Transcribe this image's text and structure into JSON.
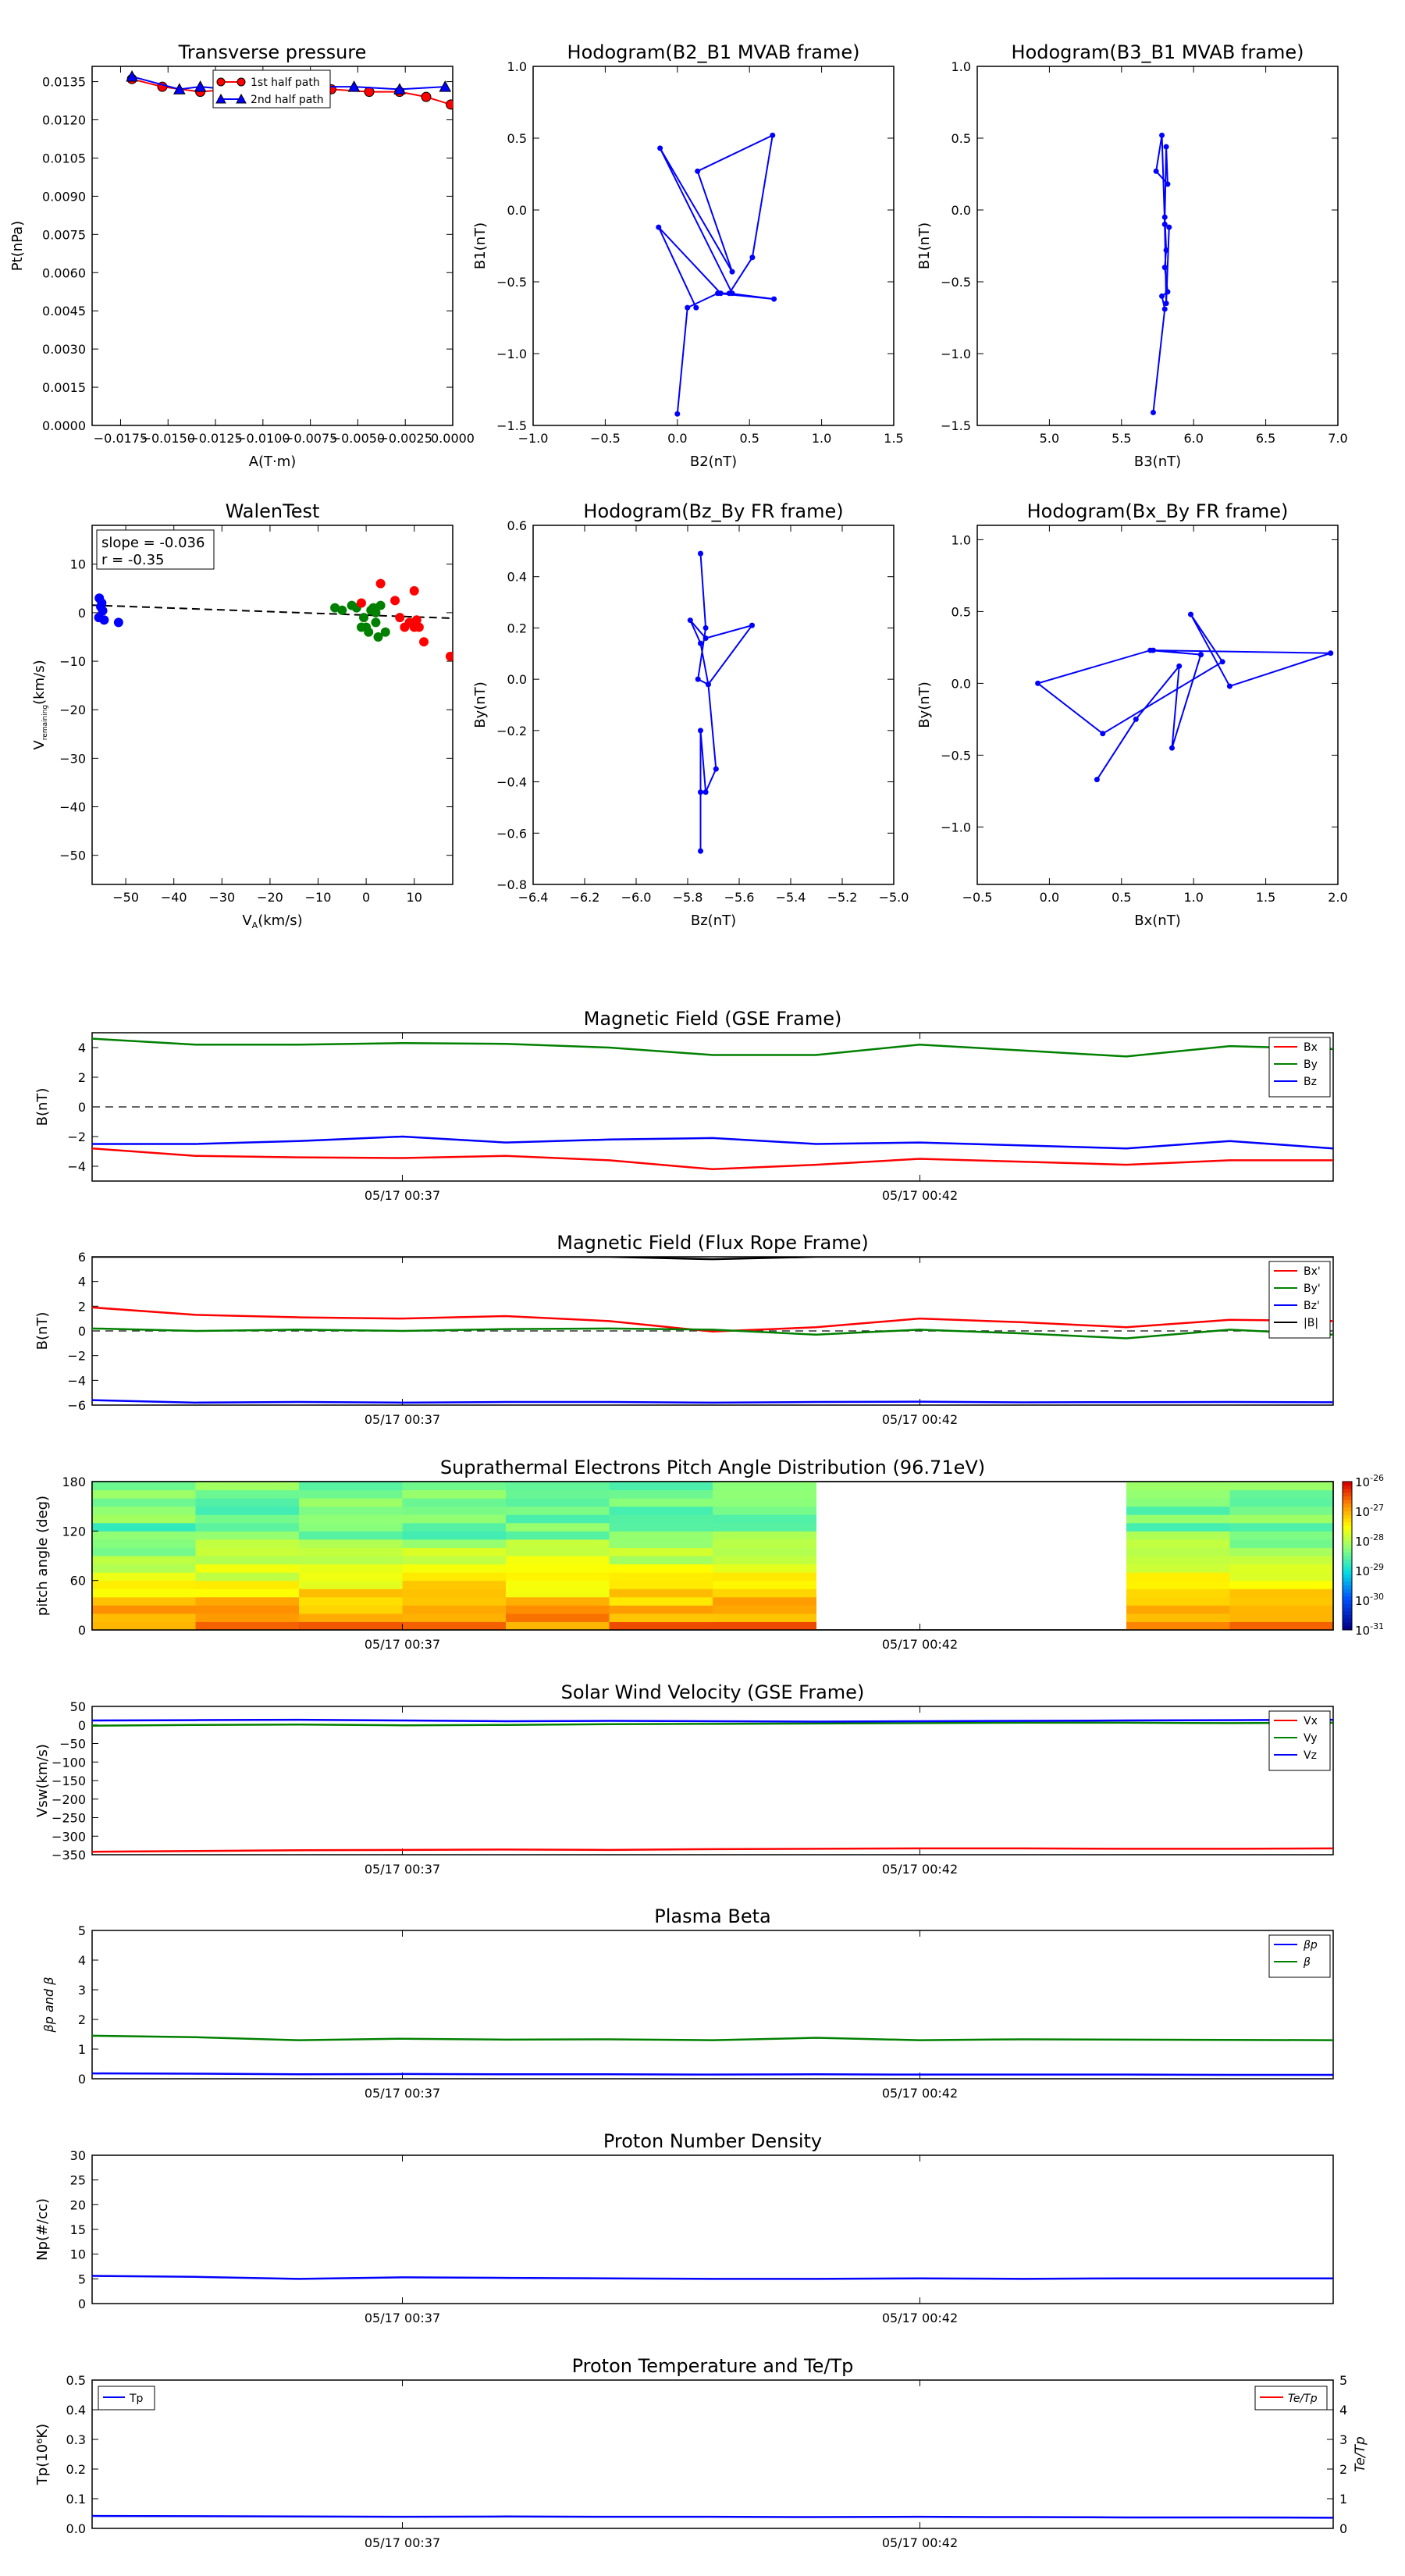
{
  "chart_data": [
    {
      "id": "pt",
      "type": "line",
      "title": "Transverse pressure",
      "xlabel": "A(T·m)",
      "ylabel": "Pt(nPa)",
      "xlim": [
        -0.019,
        0.0
      ],
      "ylim": [
        0.0,
        0.0141
      ],
      "xticks": [
        -0.0175,
        -0.015,
        -0.0125,
        -0.01,
        -0.0075,
        -0.005,
        -0.0025,
        0.0
      ],
      "xtick_labels": [
        "−0.0175",
        "−0.0150",
        "−0.0125",
        "−0.0100",
        "−0.0075",
        "−0.0050",
        "−0.0025",
        "0.0000"
      ],
      "yticks": [
        0.0,
        0.0015,
        0.003,
        0.0045,
        0.006,
        0.0075,
        0.009,
        0.0105,
        0.012,
        0.0135
      ],
      "ytick_labels": [
        "0.0000",
        "0.0015",
        "0.0030",
        "0.0045",
        "0.0060",
        "0.0075",
        "0.0090",
        "0.0105",
        "0.0120",
        "0.0135"
      ],
      "legend": "top-center",
      "series": [
        {
          "name": "1st half path",
          "color": "#ff0000",
          "marker": "circle",
          "x": [
            -0.0169,
            -0.0153,
            -0.0133,
            -0.0118,
            -0.0108,
            -0.0085,
            -0.0064,
            -0.0044,
            -0.0028,
            -0.0014,
            -0.0001
          ],
          "y": [
            0.0136,
            0.0133,
            0.0131,
            0.0132,
            0.0132,
            0.0131,
            0.0132,
            0.0131,
            0.0131,
            0.0129,
            0.0126
          ]
        },
        {
          "name": "2nd half path",
          "color": "#0000ff",
          "marker": "triangle",
          "x": [
            -0.0169,
            -0.0144,
            -0.0133,
            -0.0118,
            -0.0098,
            -0.0078,
            -0.0052,
            -0.0028,
            -0.0004
          ],
          "y": [
            0.0137,
            0.0132,
            0.0133,
            0.0132,
            0.0133,
            0.0133,
            0.0133,
            0.0132,
            0.0133
          ]
        }
      ]
    },
    {
      "id": "h1",
      "type": "line",
      "title": "Hodogram(B2_B1 MVAB frame)",
      "xlabel": "B2(nT)",
      "ylabel": "B1(nT)",
      "xlim": [
        -1.0,
        1.5
      ],
      "ylim": [
        -1.5,
        1.0
      ],
      "xticks": [
        -1.0,
        -0.5,
        0.0,
        0.5,
        1.0,
        1.5
      ],
      "xtick_labels": [
        "−1.0",
        "−0.5",
        "0.0",
        "0.5",
        "1.0",
        "1.5"
      ],
      "yticks": [
        -1.5,
        -1.0,
        -0.5,
        0.0,
        0.5,
        1.0
      ],
      "ytick_labels": [
        "−1.5",
        "−1.0",
        "−0.5",
        "0.0",
        "0.5",
        "1.0"
      ],
      "series": [
        {
          "color": "#0000ff",
          "marker": "dot",
          "x": [
            0.0,
            0.07,
            0.28,
            0.67,
            0.36,
            0.52,
            0.66,
            0.14,
            0.38,
            -0.12,
            0.38,
            0.3,
            -0.13,
            0.13
          ],
          "y": [
            -1.42,
            -0.68,
            -0.58,
            -0.62,
            -0.58,
            -0.33,
            0.52,
            0.27,
            -0.43,
            0.43,
            -0.58,
            -0.58,
            -0.12,
            -0.68
          ]
        }
      ]
    },
    {
      "id": "h2",
      "type": "line",
      "title": "Hodogram(B3_B1 MVAB frame)",
      "xlabel": "B3(nT)",
      "ylabel": "B1(nT)",
      "xlim": [
        4.5,
        7.0
      ],
      "ylim": [
        -1.5,
        1.0
      ],
      "xticks": [
        5.0,
        5.5,
        6.0,
        6.5,
        7.0
      ],
      "xtick_labels": [
        "5.0",
        "5.5",
        "6.0",
        "6.5",
        "7.0"
      ],
      "yticks": [
        -1.5,
        -1.0,
        -0.5,
        0.0,
        0.5,
        1.0
      ],
      "ytick_labels": [
        "−1.5",
        "−1.0",
        "−0.5",
        "0.0",
        "0.5",
        "1.0"
      ],
      "series": [
        {
          "color": "#0000ff",
          "marker": "dot",
          "x": [
            5.72,
            5.8,
            5.78,
            5.82,
            5.8,
            5.81,
            5.8,
            5.81,
            5.82,
            5.74,
            5.78,
            5.8,
            5.81,
            5.83
          ],
          "y": [
            -1.41,
            -0.69,
            -0.6,
            -0.57,
            -0.4,
            -0.28,
            -0.05,
            0.44,
            0.18,
            0.27,
            0.52,
            -0.1,
            -0.65,
            -0.12
          ]
        }
      ]
    },
    {
      "id": "wt",
      "type": "scatter",
      "title": "WalenTest",
      "xlabel": "V",
      "xlabel_sub": "A",
      "xlabel_tail": "(km/s)",
      "ylabel": "V",
      "ylabel_sub": "remaining",
      "ylabel_tail": "(km/s)",
      "xlim": [
        -57,
        18
      ],
      "ylim": [
        -56,
        18
      ],
      "xticks": [
        -50,
        -40,
        -30,
        -20,
        -10,
        0,
        10
      ],
      "xtick_labels": [
        "−50",
        "−40",
        "−30",
        "−20",
        "−10",
        "0",
        "10"
      ],
      "yticks": [
        -50,
        -40,
        -30,
        -20,
        -10,
        0,
        10
      ],
      "ytick_labels": [
        "−50",
        "−40",
        "−30",
        "−20",
        "−10",
        "0",
        "10"
      ],
      "annotation": [
        "slope = -0.036",
        "r = -0.35"
      ],
      "fit": {
        "slope": -0.036,
        "intercept": -0.5
      },
      "series": [
        {
          "color": "#0000ff",
          "x": [
            -55.5,
            -55,
            -55.2,
            -54.8,
            -55.6,
            -54.5,
            -51.5
          ],
          "y": [
            3,
            2,
            1.2,
            0.4,
            -1,
            -1.5,
            -2
          ]
        },
        {
          "color": "#008000",
          "x": [
            -6.5,
            -5,
            -3,
            -2,
            -0.5,
            0,
            0.5,
            1,
            1.5,
            2,
            2.5,
            3,
            4,
            -1,
            2
          ],
          "y": [
            1,
            0.5,
            1.5,
            1,
            -1,
            -3,
            -4,
            0.5,
            1,
            -2,
            -5,
            1.5,
            -4,
            -3,
            0
          ]
        },
        {
          "color": "#ff0000",
          "x": [
            -1,
            3,
            6,
            7,
            8,
            9,
            10,
            10.5,
            11,
            12,
            10,
            17.5
          ],
          "y": [
            2,
            6,
            2.5,
            -1,
            -3,
            -2,
            4.5,
            -1.5,
            -3,
            -6,
            -3,
            -9
          ]
        }
      ]
    },
    {
      "id": "h3",
      "type": "line",
      "title": "Hodogram(Bz_By FR frame)",
      "xlabel": "Bz(nT)",
      "ylabel": "By(nT)",
      "xlim": [
        -6.4,
        -5.0
      ],
      "ylim": [
        -0.8,
        0.6
      ],
      "xticks": [
        -6.4,
        -6.2,
        -6.0,
        -5.8,
        -5.6,
        -5.4,
        -5.2,
        -5.0
      ],
      "xtick_labels": [
        "−6.4",
        "−6.2",
        "−6.0",
        "−5.8",
        "−5.6",
        "−5.4",
        "−5.2",
        "−5.0"
      ],
      "yticks": [
        -0.8,
        -0.6,
        -0.4,
        -0.2,
        0.0,
        0.2,
        0.4,
        0.6
      ],
      "ytick_labels": [
        "−0.8",
        "−0.6",
        "−0.4",
        "−0.2",
        "0.0",
        "0.2",
        "0.4",
        "0.6"
      ],
      "series": [
        {
          "color": "#0000ff",
          "marker": "dot",
          "x": [
            -5.75,
            -5.75,
            -5.75,
            -5.73,
            -5.69,
            -5.72,
            -5.75,
            -5.79,
            -5.73,
            -5.55,
            -5.72,
            -5.76,
            -5.73,
            -5.75
          ],
          "y": [
            -0.67,
            -0.44,
            -0.2,
            -0.44,
            -0.35,
            -0.02,
            0.14,
            0.23,
            0.16,
            0.21,
            -0.02,
            0.0,
            0.2,
            0.49
          ]
        }
      ]
    },
    {
      "id": "h4",
      "type": "line",
      "title": "Hodogram(Bx_By FR frame)",
      "xlabel": "Bx(nT)",
      "ylabel": "By(nT)",
      "xlim": [
        -0.5,
        2.0
      ],
      "ylim": [
        -1.4,
        1.1
      ],
      "xticks": [
        -0.5,
        0.0,
        0.5,
        1.0,
        1.5,
        2.0
      ],
      "xtick_labels": [
        "−0.5",
        "0.0",
        "0.5",
        "1.0",
        "1.5",
        "2.0"
      ],
      "yticks": [
        -1.0,
        -0.5,
        0.0,
        0.5,
        1.0
      ],
      "ytick_labels": [
        "−1.0",
        "−0.5",
        "0.0",
        "0.5",
        "1.0"
      ],
      "series": [
        {
          "color": "#0000ff",
          "marker": "dot",
          "x": [
            0.33,
            0.6,
            0.9,
            0.85,
            1.05,
            0.72,
            1.95,
            1.25,
            0.98,
            1.2,
            0.37,
            -0.08,
            0.7,
            1.05
          ],
          "y": [
            -0.67,
            -0.25,
            0.12,
            -0.45,
            0.2,
            0.23,
            0.21,
            -0.02,
            0.48,
            0.15,
            -0.35,
            0.0,
            0.23,
            0.2
          ]
        }
      ]
    },
    {
      "id": "ts1",
      "type": "line",
      "title": "Magnetic Field (GSE Frame)",
      "ylabel": "B(nT)",
      "ylim": [
        -5,
        5
      ],
      "yticks": [
        -4,
        -2,
        0,
        2,
        4
      ],
      "ytick_labels": [
        "−4",
        "−2",
        "0",
        "2",
        "4"
      ],
      "xtick_frac": [
        0.25,
        0.667
      ],
      "xtick_labels": [
        "05/17 00:37",
        "05/17 00:42"
      ],
      "legend": "top-right",
      "zero_line": true,
      "series": [
        {
          "name": "Bx",
          "color": "#ff0000",
          "values": [
            -2.8,
            -3.3,
            -3.4,
            -3.45,
            -3.3,
            -3.6,
            -4.2,
            -3.9,
            -3.5,
            -3.7,
            -3.9,
            -3.6,
            -3.6
          ]
        },
        {
          "name": "By",
          "color": "#008000",
          "values": [
            4.6,
            4.2,
            4.2,
            4.3,
            4.25,
            4.0,
            3.5,
            3.5,
            4.2,
            3.8,
            3.4,
            4.1,
            3.9
          ]
        },
        {
          "name": "Bz",
          "color": "#0000ff",
          "values": [
            -2.5,
            -2.5,
            -2.3,
            -2.0,
            -2.4,
            -2.2,
            -2.1,
            -2.5,
            -2.4,
            -2.6,
            -2.8,
            -2.3,
            -2.8
          ]
        }
      ]
    },
    {
      "id": "ts2",
      "type": "line",
      "title": "Magnetic Field (Flux Rope Frame)",
      "ylabel": "B(nT)",
      "ylim": [
        -6,
        6
      ],
      "yticks": [
        -6,
        -4,
        -2,
        0,
        2,
        4,
        6
      ],
      "ytick_labels": [
        "−6",
        "−4",
        "−2",
        "0",
        "2",
        "4",
        "6"
      ],
      "xtick_frac": [
        0.25,
        0.667
      ],
      "xtick_labels": [
        "05/17 00:37",
        "05/17 00:42"
      ],
      "legend": "top-right",
      "zero_line": true,
      "series": [
        {
          "name": "Bx'",
          "color": "#ff0000",
          "values": [
            1.9,
            1.3,
            1.1,
            1.0,
            1.2,
            0.8,
            -0.05,
            0.3,
            1.0,
            0.7,
            0.3,
            0.9,
            0.8
          ]
        },
        {
          "name": "By'",
          "color": "#008000",
          "values": [
            0.2,
            0.0,
            0.1,
            0.0,
            0.15,
            0.2,
            0.1,
            -0.3,
            0.1,
            -0.2,
            -0.6,
            0.1,
            -0.3
          ]
        },
        {
          "name": "Bz'",
          "color": "#0000ff",
          "values": [
            -5.6,
            -5.8,
            -5.75,
            -5.8,
            -5.75,
            -5.75,
            -5.8,
            -5.75,
            -5.72,
            -5.78,
            -5.76,
            -5.75,
            -5.77
          ]
        },
        {
          "name": "|B|",
          "color": "#000000",
          "values": [
            6.0,
            6.0,
            6.0,
            6.0,
            6.0,
            6.0,
            5.8,
            6.0,
            6.0,
            6.0,
            6.0,
            6.0,
            6.0
          ]
        }
      ]
    },
    {
      "id": "pad",
      "type": "heatmap",
      "title": "Suprathermal Electrons Pitch Angle Distribution (96.71eV)",
      "ylabel": "pitch angle (deg)",
      "ylim": [
        0,
        180
      ],
      "yticks": [
        0,
        60,
        120,
        180
      ],
      "ytick_labels": [
        "0",
        "60",
        "120",
        "180"
      ],
      "xtick_frac": [
        0.25,
        0.667
      ],
      "xtick_labels": [
        "05/17 00:37",
        "05/17 00:42"
      ],
      "colorbar_ticks": [
        "10-26",
        "10-27",
        "10-28",
        "10-29",
        "10-30",
        "10-31"
      ],
      "colorbar_exponents": [
        "-26",
        "-27",
        "-28",
        "-29",
        "-30",
        "-31"
      ],
      "columns": 12,
      "rows": 18,
      "data_columns": [
        0,
        1,
        2,
        3,
        4,
        5,
        6,
        10,
        11
      ],
      "gap_columns": [
        7,
        8,
        9
      ]
    },
    {
      "id": "ts3",
      "type": "line",
      "title": "Solar Wind Velocity (GSE Frame)",
      "ylabel": "Vsw(km/s)",
      "ylim": [
        -350,
        50
      ],
      "yticks": [
        -350,
        -300,
        -250,
        -200,
        -150,
        -100,
        -50,
        0,
        50
      ],
      "ytick_labels": [
        "−350",
        "−300",
        "−250",
        "−200",
        "−150",
        "−100",
        "−50",
        "0",
        "50"
      ],
      "xtick_frac": [
        0.25,
        0.667
      ],
      "xtick_labels": [
        "05/17 00:37",
        "05/17 00:42"
      ],
      "legend": "top-right",
      "series": [
        {
          "name": "Vx",
          "color": "#ff0000",
          "values": [
            -342,
            -340,
            -338,
            -337,
            -336,
            -337,
            -335,
            -334,
            -333,
            -333,
            -334,
            -334,
            -333
          ]
        },
        {
          "name": "Vy",
          "color": "#008000",
          "values": [
            -2,
            0,
            1,
            -1,
            0,
            2,
            3,
            4,
            5,
            6,
            6,
            5,
            6
          ]
        },
        {
          "name": "Vz",
          "color": "#0000ff",
          "values": [
            12,
            13,
            14,
            12,
            10,
            11,
            10,
            9,
            10,
            11,
            12,
            13,
            14
          ]
        }
      ]
    },
    {
      "id": "ts4",
      "type": "line",
      "title": "Plasma Beta",
      "ylabel": "βp and β",
      "ylim": [
        0,
        5
      ],
      "yticks": [
        0,
        1,
        2,
        3,
        4,
        5
      ],
      "ytick_labels": [
        "0",
        "1",
        "2",
        "3",
        "4",
        "5"
      ],
      "xtick_frac": [
        0.25,
        0.667
      ],
      "xtick_labels": [
        "05/17 00:37",
        "05/17 00:42"
      ],
      "legend": "top-right",
      "series": [
        {
          "name": "βp",
          "color": "#0000ff",
          "values": [
            0.18,
            0.17,
            0.15,
            0.16,
            0.15,
            0.15,
            0.14,
            0.15,
            0.14,
            0.14,
            0.14,
            0.13,
            0.13
          ]
        },
        {
          "name": "β",
          "color": "#008000",
          "values": [
            1.45,
            1.4,
            1.3,
            1.35,
            1.32,
            1.33,
            1.3,
            1.38,
            1.3,
            1.33,
            1.32,
            1.31,
            1.3
          ]
        }
      ]
    },
    {
      "id": "ts5",
      "type": "line",
      "title": "Proton Number Density",
      "ylabel": "Np(#/cc)",
      "ylim": [
        0,
        30
      ],
      "yticks": [
        0,
        5,
        10,
        15,
        20,
        25,
        30
      ],
      "ytick_labels": [
        "0",
        "5",
        "10",
        "15",
        "20",
        "25",
        "30"
      ],
      "xtick_frac": [
        0.25,
        0.667
      ],
      "xtick_labels": [
        "05/17 00:37",
        "05/17 00:42"
      ],
      "series": [
        {
          "color": "#0000ff",
          "values": [
            5.6,
            5.4,
            5.0,
            5.3,
            5.2,
            5.1,
            5.0,
            5.0,
            5.1,
            5.0,
            5.1,
            5.1,
            5.1
          ]
        }
      ]
    },
    {
      "id": "ts6",
      "type": "line",
      "title": "Proton Temperature and Te/Tp",
      "ylabel": "Tp(10⁶K)",
      "ylabel2": "Te/Tp",
      "ylim": [
        0,
        0.5
      ],
      "yticks": [
        0,
        0.1,
        0.2,
        0.3,
        0.4,
        0.5
      ],
      "ytick_labels": [
        "0.0",
        "0.1",
        "0.2",
        "0.3",
        "0.4",
        "0.5"
      ],
      "y2ticks": [
        0,
        1,
        2,
        3,
        4,
        5
      ],
      "y2tick_labels": [
        "0",
        "1",
        "2",
        "3",
        "4",
        "5"
      ],
      "xtick_frac": [
        0.25,
        0.667
      ],
      "xtick_labels": [
        "05/17 00:37",
        "05/17 00:42"
      ],
      "legend_left": "Tp",
      "legend_right": "Te/Tp",
      "series": [
        {
          "name": "Tp",
          "color": "#0000ff",
          "values": [
            0.042,
            0.041,
            0.04,
            0.039,
            0.04,
            0.039,
            0.039,
            0.038,
            0.039,
            0.038,
            0.037,
            0.037,
            0.036
          ]
        }
      ]
    }
  ]
}
